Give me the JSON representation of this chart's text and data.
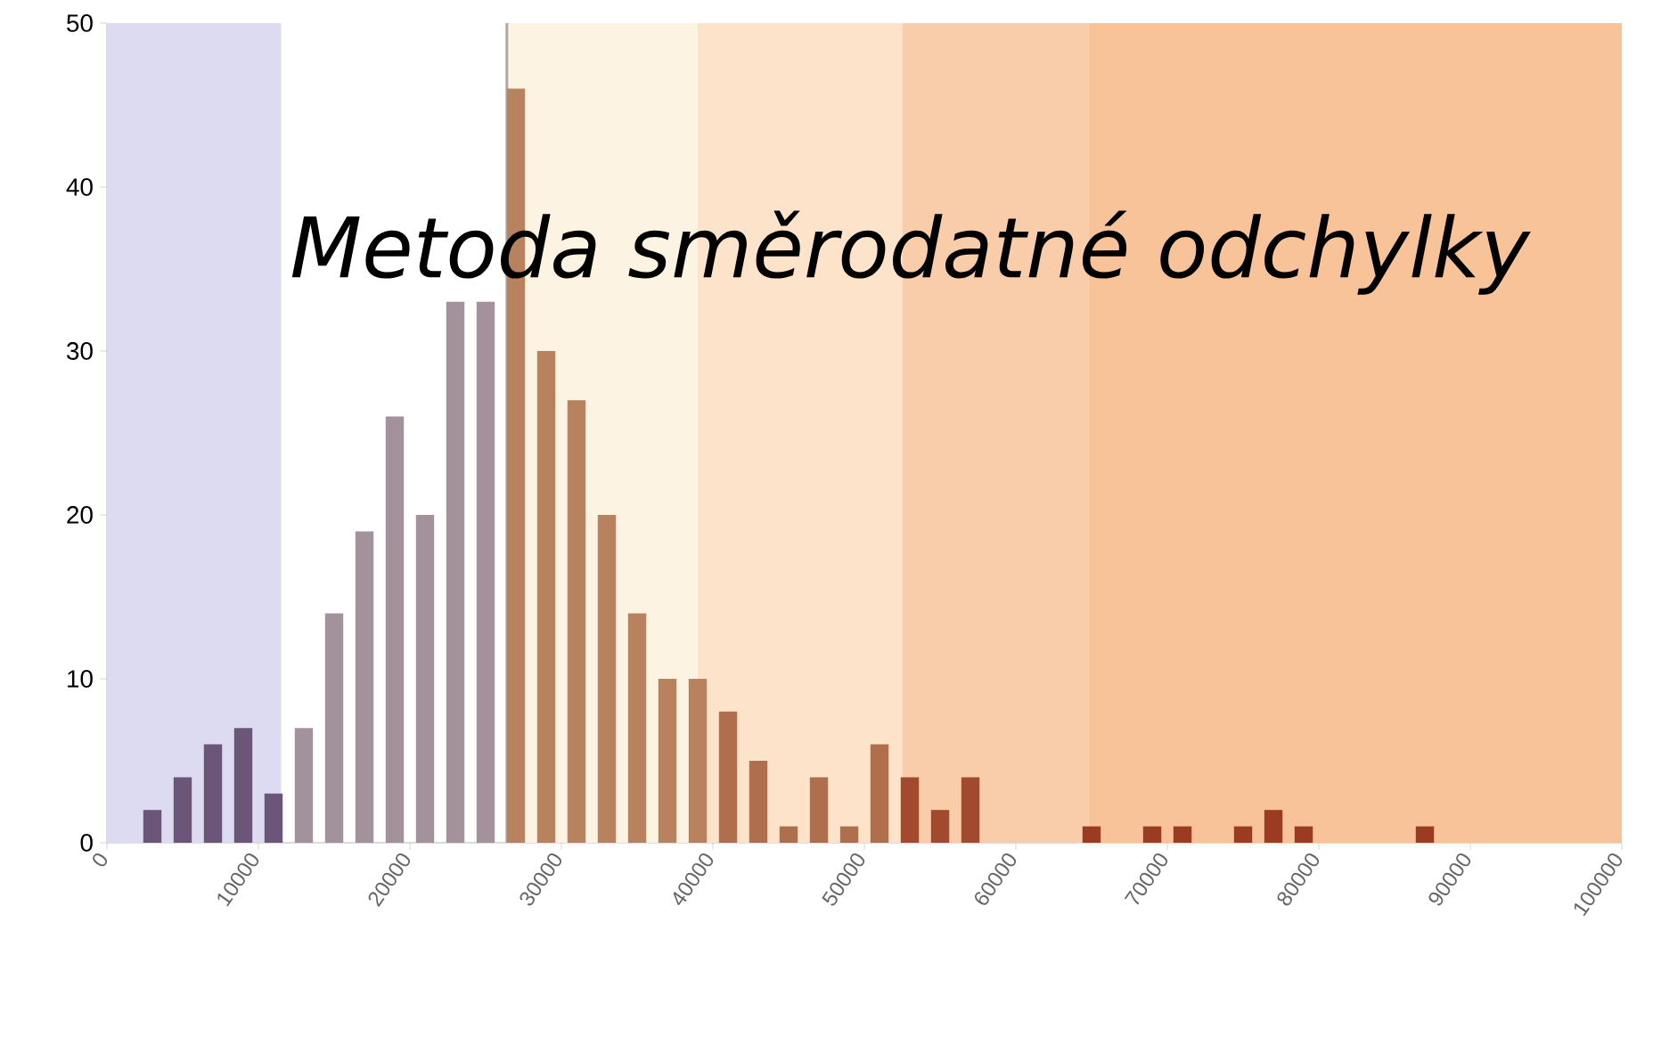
{
  "chart_data": {
    "type": "histogram",
    "title": "Metoda směrodatné odchylky",
    "bins": [
      0,
      2000,
      4000,
      6000,
      8000,
      10000,
      12000,
      14000,
      16000,
      18000,
      20000,
      22000,
      24000,
      26000,
      28000,
      30000,
      32000,
      34000,
      36000,
      38000,
      40000,
      42000,
      44000,
      46000,
      48000,
      50000,
      52000,
      54000,
      56000,
      58000,
      60000,
      62000,
      64000,
      66000,
      68000,
      70000,
      72000,
      74000,
      76000,
      78000,
      80000,
      82000,
      84000,
      86000,
      88000,
      90000,
      92000,
      94000,
      96000,
      98000,
      100000
    ],
    "values": [
      0,
      2,
      4,
      6,
      7,
      3,
      7,
      14,
      19,
      26,
      20,
      33,
      33,
      46,
      30,
      27,
      20,
      14,
      10,
      10,
      8,
      5,
      1,
      4,
      1,
      6,
      4,
      2,
      4,
      0,
      0,
      0,
      1,
      0,
      1,
      1,
      0,
      1,
      2,
      1,
      0,
      0,
      0,
      1,
      0,
      0,
      0,
      0,
      0,
      0
    ],
    "colors": [
      "#6b5578",
      "#6b5578",
      "#6b5578",
      "#6b5578",
      "#6b5578",
      "#6b5578",
      "#a3929c",
      "#a3929c",
      "#a3929c",
      "#a3929c",
      "#a3929c",
      "#a3929c",
      "#a3929c",
      "#b8825f",
      "#b8825f",
      "#b8825f",
      "#b8825f",
      "#b8825f",
      "#b8825f",
      "#b8825f",
      "#b06f4c",
      "#b06f4c",
      "#b06f4c",
      "#b06f4c",
      "#b06f4c",
      "#b06f4c",
      "#a24a2e",
      "#a24a2e",
      "#a24a2e",
      "#a24a2e",
      "#a24a2e",
      "#a24a2e",
      "#9a3b22",
      "#9a3b22",
      "#9a3b22",
      "#9a3b22",
      "#9a3b22",
      "#9a3b22",
      "#9a3b22",
      "#9a3b22",
      "#9a3b22",
      "#9a3b22",
      "#9a3b22",
      "#9a3b22",
      "#9a3b22",
      "#9a3b22",
      "#9a3b22",
      "#9a3b22",
      "#9a3b22",
      "#9a3b22"
    ],
    "xlim": [
      0,
      100000
    ],
    "xticks": [
      0,
      10000,
      20000,
      30000,
      40000,
      50000,
      60000,
      70000,
      80000,
      90000,
      100000
    ],
    "ylim": [
      0,
      50
    ],
    "yticks": [
      0,
      10,
      20,
      30,
      40,
      50
    ],
    "bands": [
      {
        "axis": "x",
        "from": 0,
        "to": 11500,
        "color": "#dcdbf2"
      },
      {
        "axis": "x",
        "from": 26400,
        "to": 39000,
        "color": "#fdf3e3"
      },
      {
        "axis": "x",
        "from": 39000,
        "to": 52500,
        "color": "#fde3c9"
      },
      {
        "axis": "x",
        "from": 52500,
        "to": 64800,
        "color": "#f9ccaa"
      },
      {
        "axis": "x",
        "from": 64800,
        "to": 100000,
        "color": "#f9c39a"
      }
    ],
    "ref_lines": [
      {
        "axis": "x",
        "value": 26400,
        "color": "#b0a8a8"
      }
    ],
    "grid": false
  }
}
